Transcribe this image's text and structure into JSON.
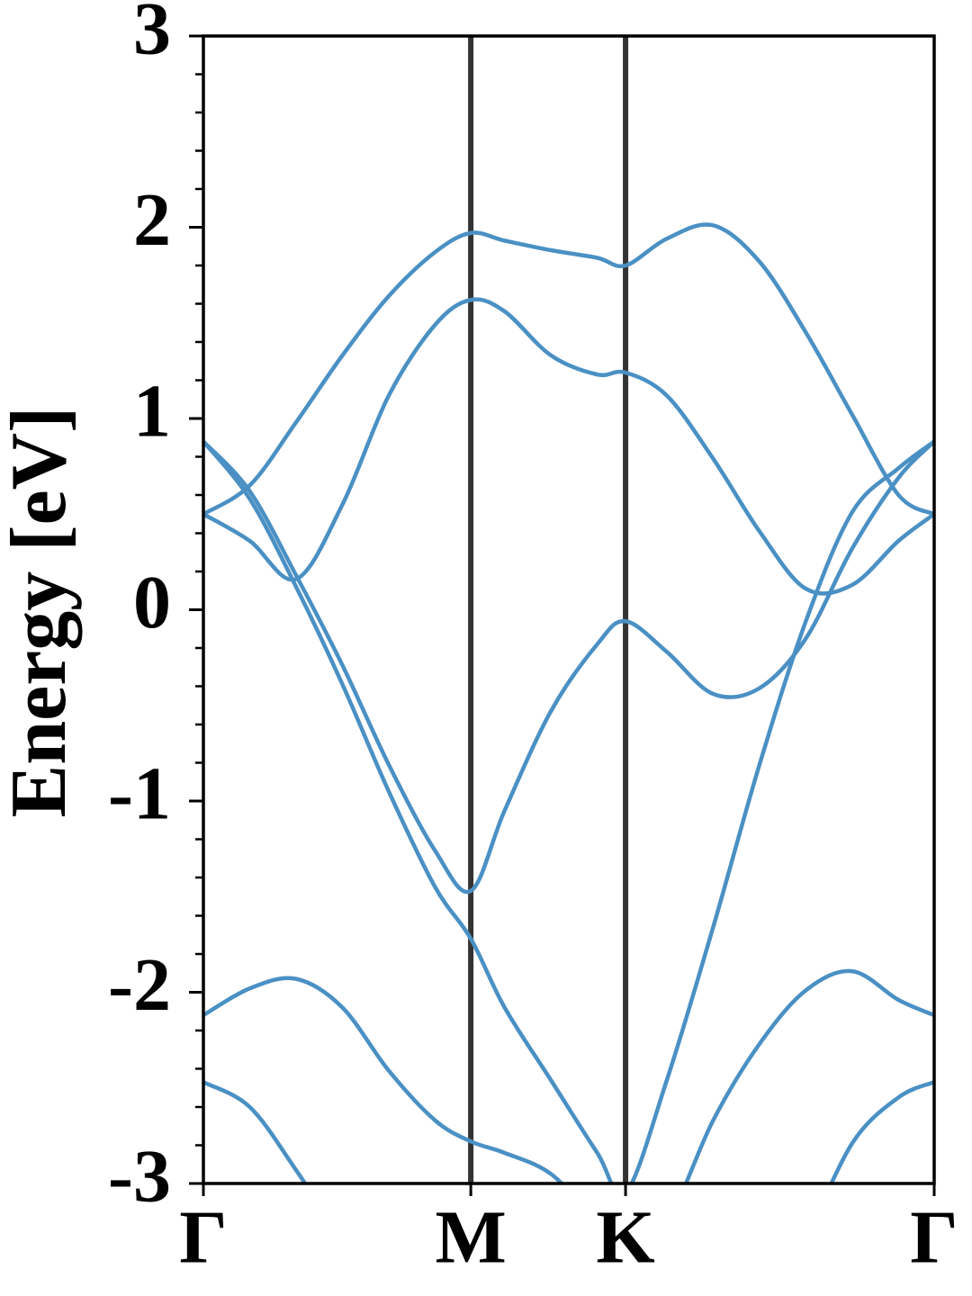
{
  "chart_data": {
    "type": "line",
    "ylabel": "Energy [eV]",
    "x": [
      0,
      0.1,
      0.2,
      0.3,
      0.4,
      0.5,
      0.577,
      0.65,
      0.75,
      0.85,
      0.911,
      1.0,
      1.1,
      1.2,
      1.3,
      1.4,
      1.5,
      1.577
    ],
    "xlim": [
      0,
      1.577
    ],
    "xticks": [
      {
        "value": 0,
        "label": "Γ"
      },
      {
        "value": 0.577,
        "label": "M"
      },
      {
        "value": 0.911,
        "label": "K"
      },
      {
        "value": 1.577,
        "label": "Γ"
      }
    ],
    "ylim": [
      -3,
      3
    ],
    "yticks": [
      -3,
      -2,
      -1,
      0,
      1,
      2,
      3
    ],
    "yticks_minor": [
      -2.8,
      -2.6,
      -2.4,
      -2.2,
      -1.8,
      -1.6,
      -1.4,
      -1.2,
      -0.8,
      -0.6,
      -0.4,
      -0.2,
      0.2,
      0.4,
      0.6,
      0.8,
      1.2,
      1.4,
      1.6,
      1.8,
      2.2,
      2.4,
      2.6,
      2.8
    ],
    "symmetry_lines": true,
    "series": [
      {
        "color": "#4a90c4",
        "values": [
          0.5,
          0.65,
          0.98,
          1.33,
          1.64,
          1.87,
          1.97,
          1.93,
          1.88,
          1.84,
          1.8,
          1.94,
          2.01,
          1.82,
          1.45,
          1.02,
          0.6,
          0.5
        ]
      },
      {
        "color": "#4a90c4",
        "values": [
          0.5,
          0.36,
          0.16,
          0.55,
          1.12,
          1.49,
          1.62,
          1.56,
          1.33,
          1.23,
          1.24,
          1.12,
          0.79,
          0.41,
          0.11,
          0.13,
          0.36,
          0.5
        ]
      },
      {
        "color": "#4a90c4",
        "values": [
          0.88,
          0.62,
          0.18,
          -0.29,
          -0.81,
          -1.26,
          -1.47,
          -1.05,
          -0.53,
          -0.18,
          -0.06,
          -0.22,
          -0.44,
          -0.41,
          -0.15,
          0.32,
          0.69,
          0.88
        ]
      },
      {
        "color": "#4a90c4",
        "values": [
          0.88,
          0.58,
          0.12,
          -0.39,
          -0.95,
          -1.45,
          -1.72,
          -2.08,
          -2.46,
          -2.84,
          -3.05,
          -2.46,
          -1.66,
          -0.81,
          -0.06,
          0.51,
          0.74,
          0.88
        ]
      },
      {
        "color": "#4a90c4",
        "values": [
          -2.12,
          -1.98,
          -1.93,
          -2.08,
          -2.41,
          -2.67,
          -2.78,
          -2.84,
          -2.95,
          -3.2,
          -3.3,
          -3.2,
          -2.67,
          -2.27,
          -1.99,
          -1.89,
          -2.04,
          -2.12
        ]
      },
      {
        "color": "#4a90c4",
        "values": [
          -2.47,
          -2.6,
          -2.93,
          -3.3,
          null,
          null,
          null,
          null,
          null,
          null,
          null,
          null,
          null,
          null,
          -3.3,
          -2.79,
          -2.55,
          -2.47
        ]
      }
    ]
  }
}
